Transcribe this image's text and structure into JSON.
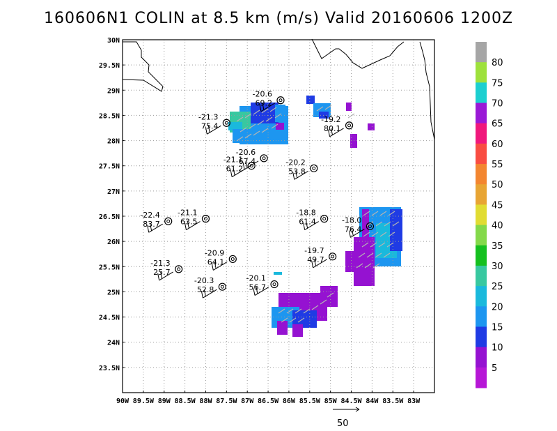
{
  "title": "160606N1  COLIN at 8.5 km (m/s) Valid 20160606  1200Z",
  "map": {
    "lon_range": [
      -90,
      -82.5
    ],
    "lat_range": [
      23,
      30
    ],
    "lon_ticks": [
      "90W",
      "89.5W",
      "89W",
      "88.5W",
      "88W",
      "87.5W",
      "87W",
      "86.5W",
      "86W",
      "85.5W",
      "85W",
      "84.5W",
      "84W",
      "83.5W",
      "83W"
    ],
    "lat_ticks": [
      "30N",
      "29.5N",
      "29N",
      "28.5N",
      "28N",
      "27.5N",
      "27N",
      "26.5N",
      "26N",
      "25.5N",
      "25N",
      "24.5N",
      "24N",
      "23.5N"
    ],
    "colorbar": {
      "labels": [
        "80",
        "75",
        "70",
        "65",
        "60",
        "55",
        "50",
        "45",
        "40",
        "35",
        "30",
        "25",
        "20",
        "15",
        "10",
        "5"
      ],
      "colors": [
        "#a6a6a6",
        "#9ee13c",
        "#1ccfd0",
        "#9a19d6",
        "#f0187c",
        "#f94d42",
        "#f38630",
        "#e8a534",
        "#e1dc33",
        "#84d94a",
        "#15c01f",
        "#38c8a0",
        "#1ab9dc",
        "#1d96f0",
        "#1f3be4",
        "#9512d1",
        "#b617d6"
      ]
    },
    "vector_scale": {
      "label": "50"
    },
    "stations": [
      {
        "temp": "-20.6",
        "height": "69.2",
        "lon": -86.2,
        "lat": 28.8
      },
      {
        "temp": "-21.3",
        "height": "75.4",
        "lon": -87.5,
        "lat": 28.35
      },
      {
        "temp": "-19.2",
        "height": "80.1",
        "lon": -84.55,
        "lat": 28.3
      },
      {
        "temp": "-20.6",
        "height": "67.4",
        "lon": -86.6,
        "lat": 27.65
      },
      {
        "temp": "-21.1",
        "height": "61.2",
        "lon": -86.9,
        "lat": 27.5
      },
      {
        "temp": "-20.2",
        "height": "53.8",
        "lon": -85.4,
        "lat": 27.45
      },
      {
        "temp": "-22.4",
        "height": "83.7",
        "lon": -88.9,
        "lat": 26.4
      },
      {
        "temp": "-21.1",
        "height": "63.5",
        "lon": -88.0,
        "lat": 26.45
      },
      {
        "temp": "-18.8",
        "height": "61.4",
        "lon": -85.15,
        "lat": 26.45
      },
      {
        "temp": "-18.0",
        "height": "76.4",
        "lon": -84.05,
        "lat": 26.3
      },
      {
        "temp": "-19.7",
        "height": "49.7",
        "lon": -84.95,
        "lat": 25.7
      },
      {
        "temp": "-20.9",
        "height": "64.1",
        "lon": -87.35,
        "lat": 25.65
      },
      {
        "temp": "-21.3",
        "height": "25.7",
        "lon": -88.65,
        "lat": 25.45
      },
      {
        "temp": "-20.3",
        "height": "52.8",
        "lon": -87.6,
        "lat": 25.1
      },
      {
        "temp": "-20.1",
        "height": "56.7",
        "lon": -86.35,
        "lat": 25.15
      }
    ]
  }
}
